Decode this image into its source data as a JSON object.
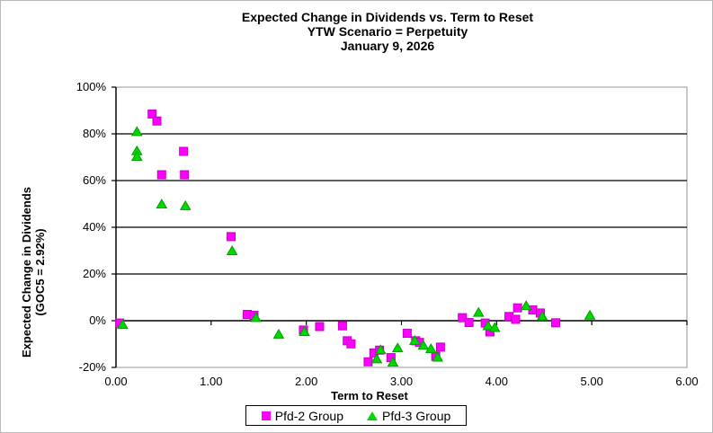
{
  "chart_data": {
    "type": "scatter",
    "title": "Expected Change in Dividends vs. Term to Reset",
    "subtitle": "YTW Scenario = Perpetuity",
    "date": "January 9, 2026",
    "xlabel": "Term to Reset",
    "ylabel": "Expected Change in Dividends",
    "ylabel_line2": "(GOC5 = 2.92%)",
    "xlim": [
      0,
      6
    ],
    "ylim": [
      -20,
      100
    ],
    "x_ticks": [
      0,
      1,
      2,
      3,
      4,
      5,
      6
    ],
    "x_tick_labels": [
      "0.00",
      "1.00",
      "2.00",
      "3.00",
      "4.00",
      "5.00",
      "6.00"
    ],
    "y_ticks": [
      100,
      80,
      60,
      40,
      20,
      0,
      -20
    ],
    "y_tick_labels": [
      "100%",
      "80%",
      "60%",
      "40%",
      "20%",
      "0%",
      "-20%"
    ],
    "grid": "horizontal",
    "legend_position": "bottom",
    "series": [
      {
        "name": "Pfd-2 Group",
        "marker": "square",
        "color": "#ff00ff",
        "edge_color": "#c400c4",
        "points": [
          [
            0.04,
            -1.0
          ],
          [
            0.38,
            88.5
          ],
          [
            0.43,
            85.5
          ],
          [
            0.48,
            62.5
          ],
          [
            0.71,
            72.5
          ],
          [
            0.72,
            62.5
          ],
          [
            1.21,
            36.0
          ],
          [
            1.38,
            2.7
          ],
          [
            1.45,
            2.3
          ],
          [
            1.97,
            -4.0
          ],
          [
            2.14,
            -2.5
          ],
          [
            2.38,
            -2.2
          ],
          [
            2.43,
            -8.6
          ],
          [
            2.47,
            -9.9
          ],
          [
            2.65,
            -17.6
          ],
          [
            2.71,
            -13.8
          ],
          [
            2.77,
            -12.6
          ],
          [
            2.89,
            -15.8
          ],
          [
            3.06,
            -5.4
          ],
          [
            3.15,
            -8.6
          ],
          [
            3.19,
            -9.3
          ],
          [
            3.36,
            -15.2
          ],
          [
            3.41,
            -11.3
          ],
          [
            3.64,
            1.3
          ],
          [
            3.71,
            -0.8
          ],
          [
            3.88,
            -1.0
          ],
          [
            3.93,
            -4.8
          ],
          [
            4.13,
            1.8
          ],
          [
            4.2,
            0.6
          ],
          [
            4.22,
            5.5
          ],
          [
            4.38,
            4.6
          ],
          [
            4.46,
            3.3
          ],
          [
            4.62,
            -0.9
          ]
        ]
      },
      {
        "name": "Pfd-3 Group",
        "marker": "triangle",
        "color": "#00d800",
        "edge_color": "#00a000",
        "points": [
          [
            0.07,
            -1.6
          ],
          [
            0.22,
            81.0
          ],
          [
            0.22,
            72.8
          ],
          [
            0.22,
            70.4
          ],
          [
            0.48,
            50.0
          ],
          [
            0.73,
            49.3
          ],
          [
            1.22,
            30.0
          ],
          [
            1.47,
            1.4
          ],
          [
            1.71,
            -5.7
          ],
          [
            1.98,
            -4.6
          ],
          [
            2.74,
            -16.3
          ],
          [
            2.78,
            -12.4
          ],
          [
            2.91,
            -17.7
          ],
          [
            2.96,
            -11.6
          ],
          [
            3.14,
            -8.4
          ],
          [
            3.23,
            -10.5
          ],
          [
            3.31,
            -11.9
          ],
          [
            3.38,
            -15.6
          ],
          [
            3.81,
            3.6
          ],
          [
            3.91,
            -2.1
          ],
          [
            3.98,
            -2.9
          ],
          [
            4.31,
            6.5
          ],
          [
            4.48,
            2.0
          ],
          [
            4.98,
            2.4
          ]
        ]
      }
    ],
    "colors": {
      "gridline": "#000000",
      "plot_border": "#a6a6a6",
      "axis": "#000000"
    }
  }
}
